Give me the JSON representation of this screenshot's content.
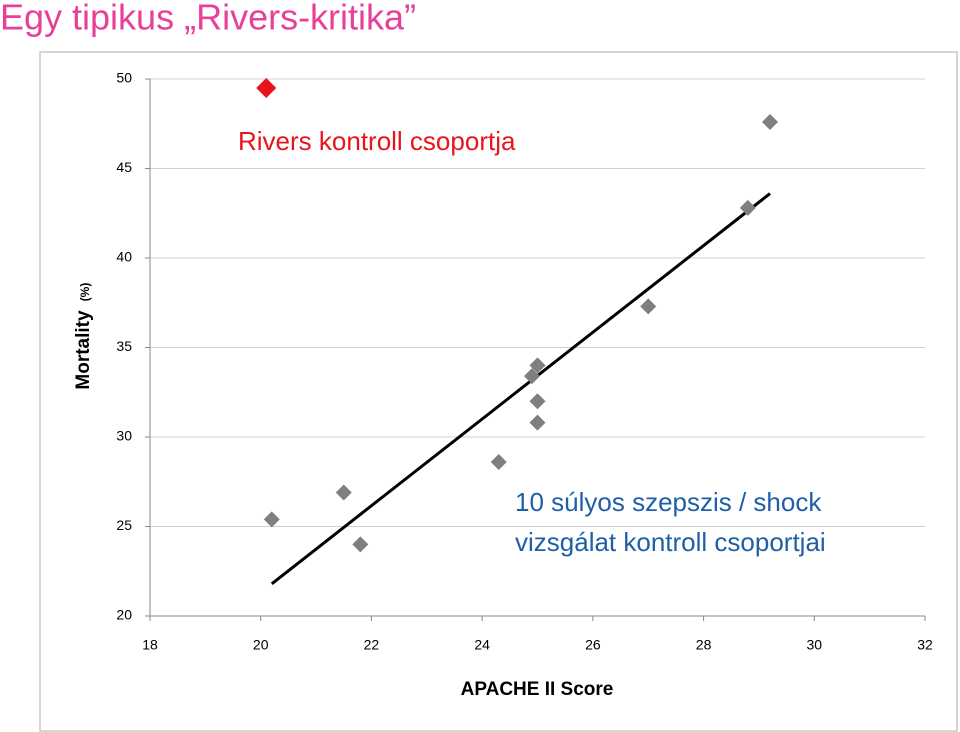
{
  "chart_data": {
    "type": "scatter",
    "title": "Egy tipikus „Rivers-kritika”",
    "title_color": "#e8409a",
    "xlabel": "APACHE II Score",
    "ylabel": "Mortality",
    "ylabel_unit": "(%)",
    "xlim": [
      18,
      32
    ],
    "xticks": [
      18,
      20,
      22,
      24,
      26,
      28,
      30,
      32
    ],
    "ylim": [
      20,
      50
    ],
    "yticks": [
      20,
      25,
      30,
      35,
      40,
      45,
      50
    ],
    "grid": true,
    "series": [
      {
        "color": "#e8141b",
        "x": [
          20.1
        ],
        "y": [
          49.5
        ]
      },
      {
        "color": "#7f7f7f",
        "x": [
          20.2,
          21.5,
          21.8,
          24.3,
          24.9,
          25.0,
          25.0,
          25.0,
          27.0,
          28.8,
          29.2
        ],
        "y": [
          25.4,
          26.9,
          24.0,
          28.6,
          33.4,
          34.0,
          32.0,
          30.8,
          37.3,
          42.8,
          47.6
        ]
      }
    ],
    "trendline": {
      "color": "#000000",
      "x": [
        20.2,
        29.2
      ],
      "y": [
        21.8,
        43.6
      ]
    },
    "annotations": [
      {
        "text": "Rivers kontroll csoportja",
        "color": "#e8141b"
      },
      {
        "text": "10 súlyos szepszis / shock",
        "color": "#1f5fa8"
      },
      {
        "text": "vizsgálat kontroll csoportjai",
        "color": "#1f5fa8"
      }
    ]
  }
}
